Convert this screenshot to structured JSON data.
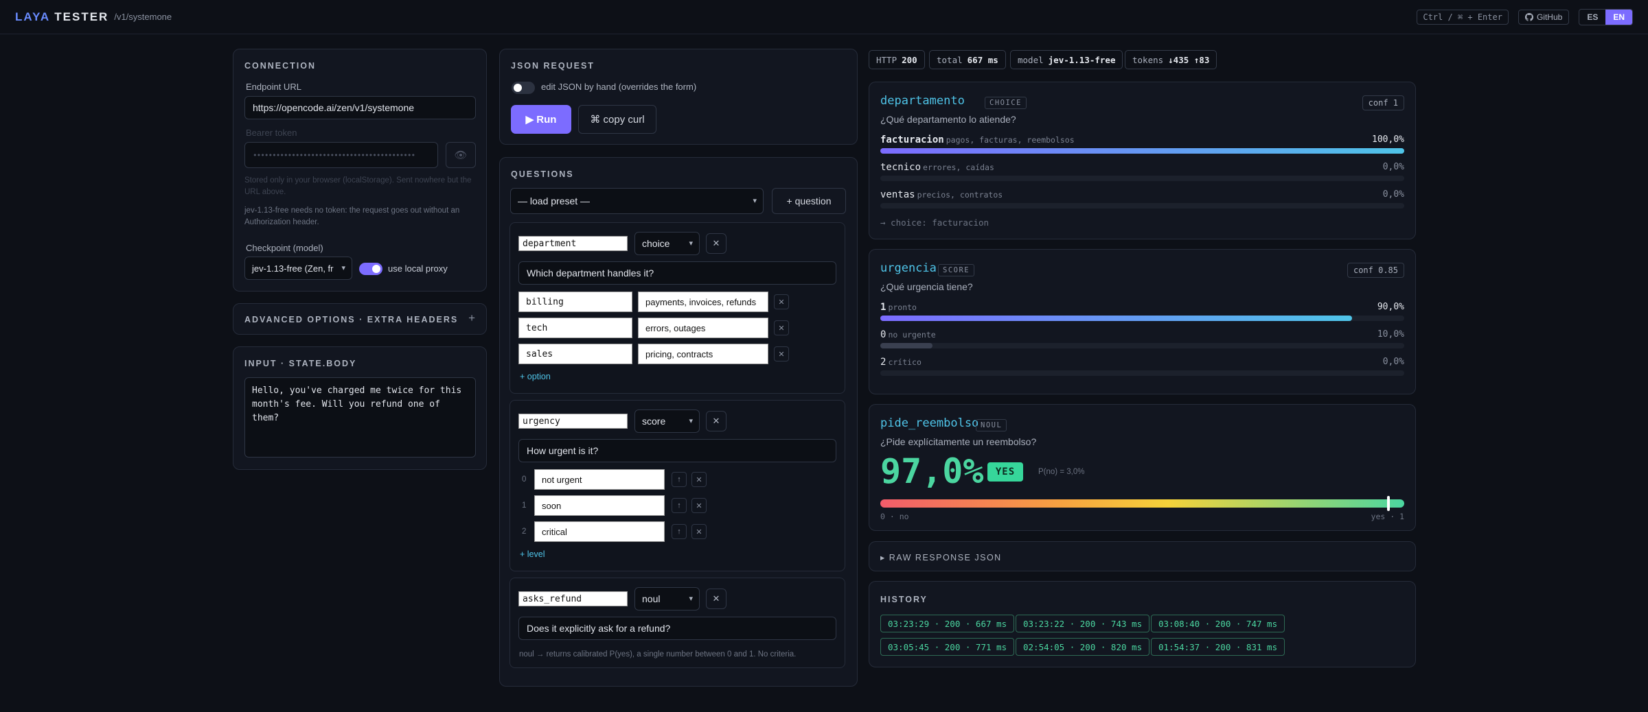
{
  "header": {
    "brand_a": "LAYA",
    "brand_b": "TESTER",
    "path": "/v1/systemone",
    "shortcut": "Ctrl / ⌘ + Enter",
    "github": "GitHub",
    "lang_es": "ES",
    "lang_en": "EN"
  },
  "connection": {
    "title": "CONNECTION",
    "endpoint_label": "Endpoint URL",
    "endpoint_value": "https://opencode.ai/zen/v1/systemone",
    "token_label": "Bearer token",
    "token_value": "••••••••••••••••••••••••••••••••••••••••••",
    "token_note": "Stored only in your browser (localStorage). Sent nowhere but the URL above.",
    "free_note": "jev-1.13-free needs no token: the request goes out without an Authorization header.",
    "checkpoint_label": "Checkpoint (model)",
    "checkpoint_value": "jev-1.13-free (Zen, fr",
    "proxy_label": "use local proxy",
    "proxy_on": true
  },
  "advanced": {
    "title": "ADVANCED OPTIONS · EXTRA HEADERS",
    "icon": "+"
  },
  "input": {
    "title": "INPUT · STATE.BODY",
    "text": "Hello, you've charged me twice for this month's fee. Will you refund one of them?"
  },
  "request": {
    "title": "JSON REQUEST",
    "edit_label": "edit JSON by hand (overrides the form)",
    "run": "▶ Run",
    "curl": "⌘ copy curl"
  },
  "questions": {
    "title": "QUESTIONS",
    "preset": "— load preset —",
    "add_question": "+ question",
    "q1": {
      "name": "department",
      "type": "choice",
      "text": "Which department handles it?",
      "options": [
        {
          "key": "billing",
          "desc": "payments, invoices, refunds"
        },
        {
          "key": "tech",
          "desc": "errors, outages"
        },
        {
          "key": "sales",
          "desc": "pricing, contracts"
        }
      ],
      "add": "+ option"
    },
    "q2": {
      "name": "urgency",
      "type": "score",
      "text": "How urgent is it?",
      "levels": [
        {
          "n": "0",
          "label": "not urgent"
        },
        {
          "n": "1",
          "label": "soon"
        },
        {
          "n": "2",
          "label": "critical"
        }
      ],
      "add": "+ level"
    },
    "q3": {
      "name": "asks_refund",
      "type": "noul",
      "text": "Does it explicitly ask for a refund?",
      "note": "noul → returns calibrated P(yes), a single number between 0 and 1. No criteria."
    }
  },
  "status": {
    "http_l": "HTTP",
    "http_v": "200",
    "total_l": "total",
    "total_v": "667 ms",
    "model_l": "model",
    "model_v": "jev-1.13-free",
    "tokens_l": "tokens",
    "tokens_v": "↓435 ↑83"
  },
  "results": {
    "r1": {
      "name": "departamento",
      "tag": "CHOICE",
      "conf": "conf 1",
      "q": "¿Qué departamento lo atiende?",
      "rows": [
        {
          "k": "facturacion",
          "d": "pagos, facturas, reembolsos",
          "v": "100,0%",
          "p": 1.0
        },
        {
          "k": "tecnico",
          "d": "errores, caídas",
          "v": "0,0%",
          "p": 0.0
        },
        {
          "k": "ventas",
          "d": "precios, contratos",
          "v": "0,0%",
          "p": 0.0
        }
      ],
      "result": "→ choice: facturacion"
    },
    "r2": {
      "name": "urgencia",
      "tag": "SCORE",
      "conf": "conf 0.85",
      "q": "¿Qué urgencia tiene?",
      "rows": [
        {
          "k": "1",
          "d": "pronto",
          "v": "90,0%",
          "p": 0.9
        },
        {
          "k": "0",
          "d": "no urgente",
          "v": "10,0%",
          "p": 0.1
        },
        {
          "k": "2",
          "d": "crítico",
          "v": "0,0%",
          "p": 0.0
        }
      ]
    },
    "r3": {
      "name": "pide_reembolso",
      "tag": "NOUL",
      "q": "¿Pide explícitamente un reembolso?",
      "big": "97,0%",
      "badge": "YES",
      "pno": "P(no) = 3,0%",
      "p_yes": 0.97,
      "left": "0 · no",
      "right": "yes · 1"
    }
  },
  "raw": {
    "title": "▸ RAW RESPONSE JSON"
  },
  "history": {
    "title": "HISTORY",
    "items": [
      "03:23:29 · 200 · 667 ms",
      "03:23:22 · 200 · 743 ms",
      "03:08:40 · 200 · 747 ms",
      "03:05:45 · 200 · 771 ms",
      "02:54:05 · 200 · 820 ms",
      "01:54:37 · 200 · 831 ms"
    ]
  },
  "colors": {
    "accent": "#7c6cff",
    "cyan": "#4fc4e8",
    "green": "#4bd6a0"
  }
}
